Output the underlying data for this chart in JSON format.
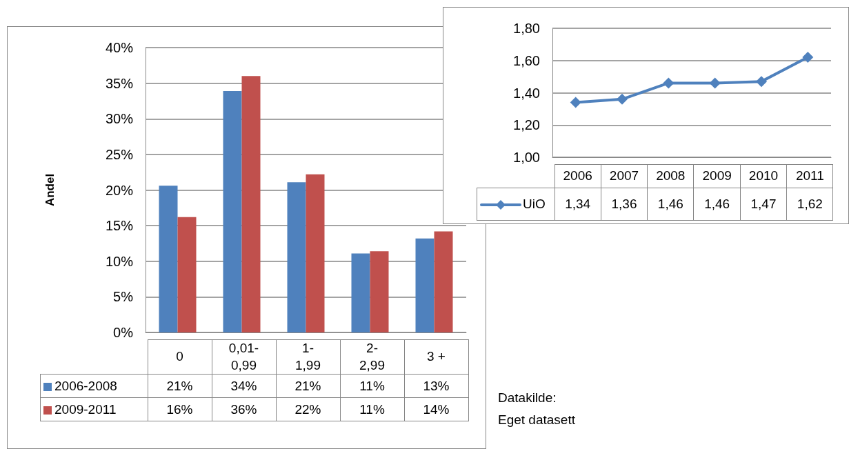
{
  "chart_data": [
    {
      "type": "bar",
      "ylabel": "Andel",
      "categories": [
        "0",
        "0,01-0,99",
        "1-1,99",
        "2-2,99",
        "3 +"
      ],
      "series": [
        {
          "name": "2006-2008",
          "color": "#4f81bd",
          "values": [
            20.6,
            33.9,
            21.1,
            11.1,
            13.2
          ],
          "value_labels": [
            "21%",
            "34%",
            "21%",
            "11%",
            "13%"
          ]
        },
        {
          "name": "2009-2011",
          "color": "#c0504d",
          "values": [
            16.2,
            36.0,
            22.2,
            11.4,
            14.2
          ],
          "value_labels": [
            "16%",
            "36%",
            "22%",
            "11%",
            "14%"
          ]
        }
      ],
      "ylim": [
        0,
        40
      ],
      "yticks": [
        {
          "value": 0,
          "label": "0%"
        },
        {
          "value": 5,
          "label": "5%"
        },
        {
          "value": 10,
          "label": "10%"
        },
        {
          "value": 15,
          "label": "15%"
        },
        {
          "value": 20,
          "label": "20%"
        },
        {
          "value": 25,
          "label": "25%"
        },
        {
          "value": 30,
          "label": "30%"
        },
        {
          "value": 35,
          "label": "35%"
        },
        {
          "value": 40,
          "label": "40%"
        }
      ],
      "grid": "y",
      "legend": "bottom left",
      "annotations": [
        "Datakilde:",
        "Eget datasett"
      ]
    },
    {
      "type": "line",
      "categories": [
        "2006",
        "2007",
        "2008",
        "2009",
        "2010",
        "2011"
      ],
      "series": [
        {
          "name": "UiO",
          "color": "#4f81bd",
          "values": [
            1.34,
            1.36,
            1.46,
            1.46,
            1.47,
            1.62
          ],
          "value_labels": [
            "1,34",
            "1,36",
            "1,46",
            "1,46",
            "1,47",
            "1,62"
          ]
        }
      ],
      "ylim": [
        1.0,
        1.8
      ],
      "yticks": [
        {
          "value": 1.0,
          "label": "1,00"
        },
        {
          "value": 1.2,
          "label": "1,20"
        },
        {
          "value": 1.4,
          "label": "1,40"
        },
        {
          "value": 1.6,
          "label": "1,60"
        },
        {
          "value": 1.8,
          "label": "1,80"
        }
      ],
      "grid": "y",
      "legend": "bottom left",
      "marker": "diamond",
      "line_style": "solid"
    }
  ]
}
